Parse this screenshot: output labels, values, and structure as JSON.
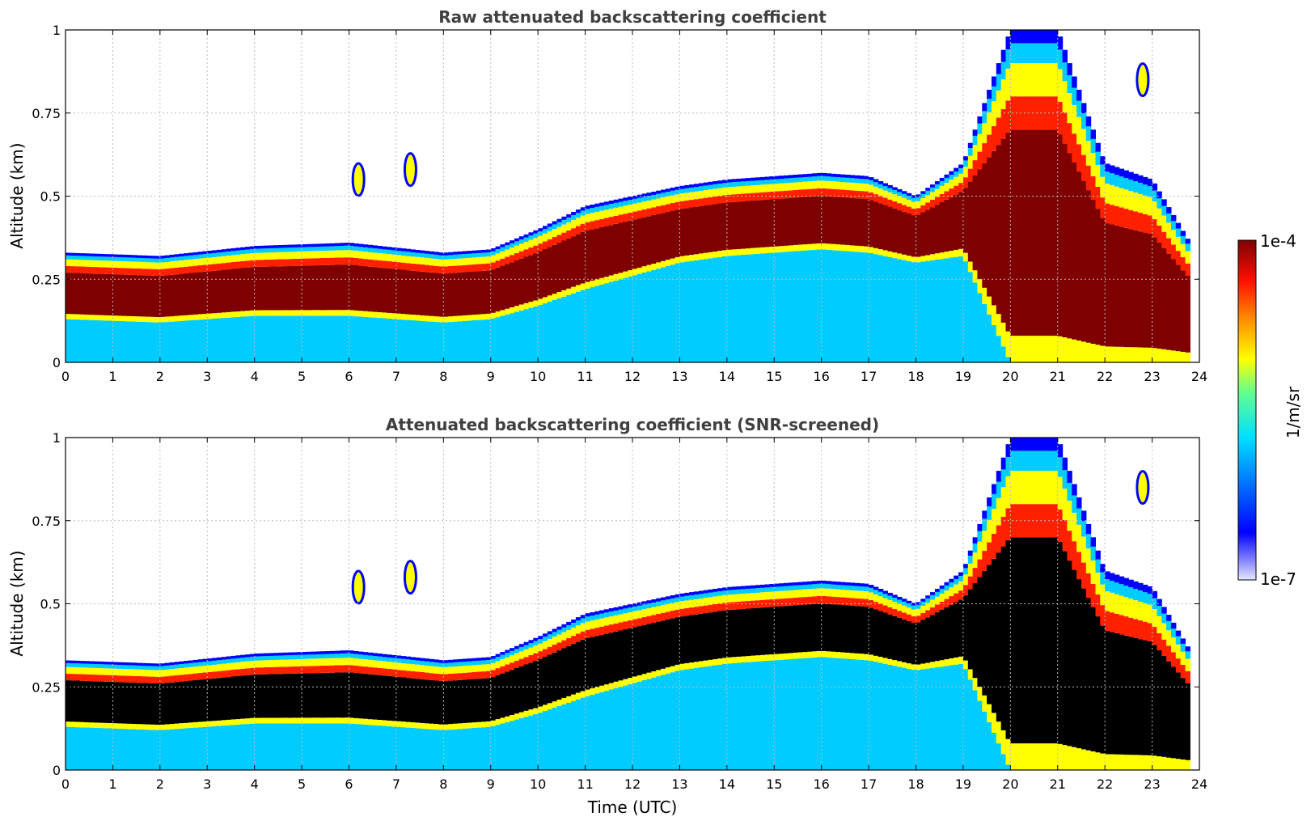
{
  "colors": {
    "jet_low": "#ffffff",
    "jet_blue": "#0000ff",
    "jet_cyan": "#00ccff",
    "jet_yellow": "#ffff00",
    "jet_red": "#ff2000",
    "jet_dark_red": "#7f0000",
    "screened_core": "#000000",
    "title_text": "#404040",
    "grid": "#bdbdbd"
  },
  "colorbar": {
    "label": "1/m/sr",
    "max_label": "1e-4",
    "min_label": "1e-7",
    "scale": "log",
    "colormap": "jet"
  },
  "chart_data": [
    {
      "type": "heatmap",
      "title": "Raw attenuated backscattering coefficient",
      "xlabel": "",
      "ylabel": "Altitude (km)",
      "xlim": [
        0,
        24
      ],
      "ylim": [
        0,
        1
      ],
      "xticks": [
        "0",
        "1",
        "2",
        "3",
        "4",
        "5",
        "6",
        "7",
        "8",
        "9",
        "10",
        "11",
        "12",
        "13",
        "14",
        "15",
        "16",
        "17",
        "18",
        "19",
        "20",
        "21",
        "22",
        "23",
        "24"
      ],
      "yticks": [
        "0",
        "0.25",
        "0.5",
        "0.75",
        "1"
      ],
      "grid": true,
      "layer_top_km": {
        "time_utc": [
          0,
          2,
          4,
          6,
          8,
          9,
          10,
          11,
          12,
          13,
          14,
          15,
          16,
          17,
          18,
          19,
          20,
          21,
          22,
          23,
          23.8
        ],
        "altitude_km": [
          0.33,
          0.32,
          0.35,
          0.36,
          0.33,
          0.34,
          0.4,
          0.47,
          0.5,
          0.53,
          0.55,
          0.56,
          0.57,
          0.56,
          0.5,
          0.6,
          1.0,
          1.0,
          0.6,
          0.55,
          0.36
        ]
      },
      "layer_base_km": {
        "time_utc": [
          0,
          2,
          4,
          6,
          8,
          9,
          10,
          11,
          12,
          13,
          14,
          15,
          16,
          17,
          18,
          19,
          20,
          21,
          22,
          23,
          23.8
        ],
        "altitude_km": [
          0.13,
          0.12,
          0.14,
          0.14,
          0.12,
          0.13,
          0.17,
          0.22,
          0.26,
          0.3,
          0.32,
          0.33,
          0.34,
          0.33,
          0.3,
          0.32,
          0.0,
          0.0,
          0.0,
          0.0,
          0.0
        ]
      },
      "isolated_features": [
        {
          "time_utc": 6.2,
          "altitude_km": 0.55
        },
        {
          "time_utc": 7.3,
          "altitude_km": 0.58
        },
        {
          "time_utc": 22.8,
          "altitude_km": 0.85
        }
      ]
    },
    {
      "type": "heatmap",
      "title": "Attenuated backscattering coefficient (SNR-screened)",
      "xlabel": "Time (UTC)",
      "ylabel": "Altitude (km)",
      "xlim": [
        0,
        24
      ],
      "ylim": [
        0,
        1
      ],
      "xticks": [
        "0",
        "1",
        "2",
        "3",
        "4",
        "5",
        "6",
        "7",
        "8",
        "9",
        "10",
        "11",
        "12",
        "13",
        "14",
        "15",
        "16",
        "17",
        "18",
        "19",
        "20",
        "21",
        "22",
        "23",
        "24"
      ],
      "yticks": [
        "0",
        "0.25",
        "0.5",
        "0.75",
        "1"
      ],
      "grid": true,
      "layer_top_km": {
        "time_utc": [
          0,
          2,
          4,
          6,
          8,
          9,
          10,
          11,
          12,
          13,
          14,
          15,
          16,
          17,
          18,
          19,
          20,
          21,
          22,
          23,
          23.8
        ],
        "altitude_km": [
          0.33,
          0.32,
          0.35,
          0.36,
          0.33,
          0.34,
          0.4,
          0.47,
          0.5,
          0.53,
          0.55,
          0.56,
          0.57,
          0.56,
          0.5,
          0.6,
          1.0,
          1.0,
          0.6,
          0.55,
          0.36
        ]
      },
      "layer_base_km": {
        "time_utc": [
          0,
          2,
          4,
          6,
          8,
          9,
          10,
          11,
          12,
          13,
          14,
          15,
          16,
          17,
          18,
          19,
          20,
          21,
          22,
          23,
          23.8
        ],
        "altitude_km": [
          0.13,
          0.12,
          0.14,
          0.14,
          0.12,
          0.13,
          0.17,
          0.22,
          0.26,
          0.3,
          0.32,
          0.33,
          0.34,
          0.33,
          0.3,
          0.32,
          0.0,
          0.0,
          0.0,
          0.0,
          0.0
        ]
      },
      "isolated_features": [
        {
          "time_utc": 6.2,
          "altitude_km": 0.55
        },
        {
          "time_utc": 7.3,
          "altitude_km": 0.58
        },
        {
          "time_utc": 22.8,
          "altitude_km": 0.85
        }
      ]
    }
  ]
}
